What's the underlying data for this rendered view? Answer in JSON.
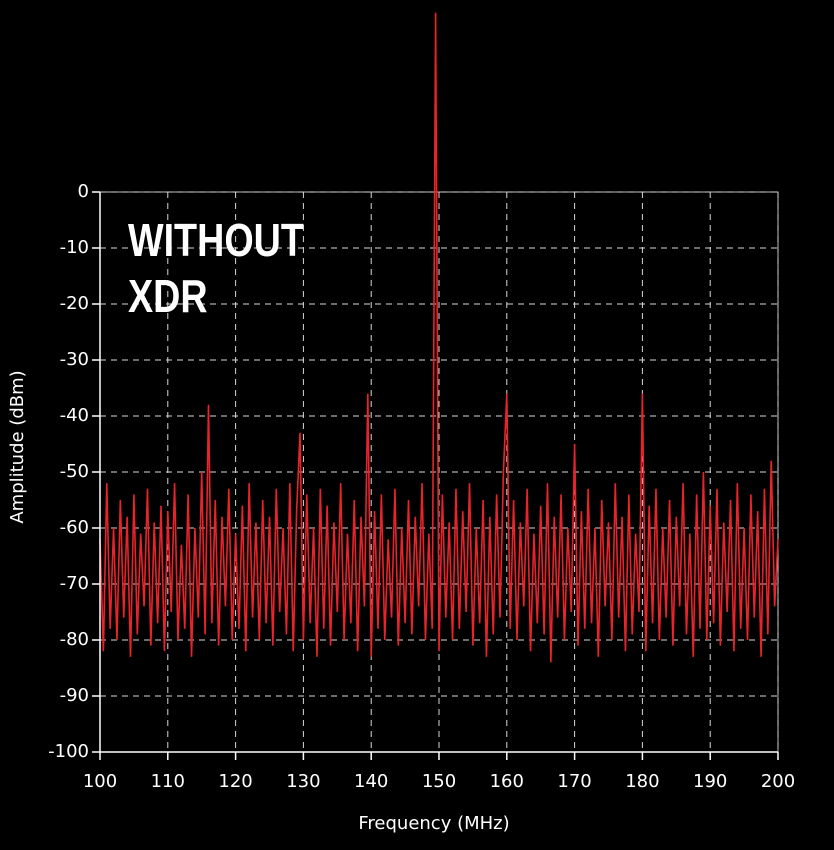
{
  "chart_data": {
    "type": "line",
    "xlabel": "Frequency (MHz)",
    "ylabel": "Amplitude (dBm)",
    "annotations": [
      "WITHOUT",
      "XDR"
    ],
    "color": "#e8232b",
    "grid": true,
    "xlim": [
      100,
      200
    ],
    "xticks": [
      100,
      110,
      120,
      130,
      140,
      150,
      160,
      170,
      180,
      190,
      200
    ],
    "ylim": [
      -100,
      0
    ],
    "yticks": [
      0,
      -10,
      -20,
      -30,
      -40,
      -50,
      -60,
      -70,
      -80,
      -90,
      -100
    ],
    "x": [
      100,
      100.5,
      101,
      101.5,
      102,
      102.5,
      103,
      103.5,
      104,
      104.5,
      105,
      105.5,
      106,
      106.5,
      107,
      107.5,
      108,
      108.5,
      109,
      109.5,
      110,
      110.5,
      111,
      111.5,
      112,
      112.5,
      113,
      113.5,
      114,
      114.5,
      115,
      115.5,
      116,
      116.5,
      117,
      117.5,
      118,
      118.5,
      119,
      119.5,
      120,
      120.5,
      121,
      121.5,
      122,
      122.5,
      123,
      123.5,
      124,
      124.5,
      125,
      125.5,
      126,
      126.5,
      127,
      127.5,
      128,
      128.5,
      129,
      129.5,
      130,
      130.5,
      131,
      131.5,
      132,
      132.5,
      133,
      133.5,
      134,
      134.5,
      135,
      135.5,
      136,
      136.5,
      137,
      137.5,
      138,
      138.5,
      139,
      139.5,
      140,
      140.5,
      141,
      141.5,
      142,
      142.5,
      143,
      143.5,
      144,
      144.5,
      145,
      145.5,
      146,
      146.5,
      147,
      147.5,
      148,
      148.5,
      149,
      149.5,
      150,
      150.5,
      151,
      151.5,
      152,
      152.5,
      153,
      153.5,
      154,
      154.5,
      155,
      155.5,
      156,
      156.5,
      157,
      157.5,
      158,
      158.5,
      159,
      159.5,
      160,
      160.5,
      161,
      161.5,
      162,
      162.5,
      163,
      163.5,
      164,
      164.5,
      165,
      165.5,
      166,
      166.5,
      167,
      167.5,
      168,
      168.5,
      169,
      169.5,
      170,
      170.5,
      171,
      171.5,
      172,
      172.5,
      173,
      173.5,
      174,
      174.5,
      175,
      175.5,
      176,
      176.5,
      177,
      177.5,
      178,
      178.5,
      179,
      179.5,
      180,
      180.5,
      181,
      181.5,
      182,
      182.5,
      183,
      183.5,
      184,
      184.5,
      185,
      185.5,
      186,
      186.5,
      187,
      187.5,
      188,
      188.5,
      189,
      189.5,
      190,
      190.5,
      191,
      191.5,
      192,
      192.5,
      193,
      193.5,
      194,
      194.5,
      195,
      195.5,
      196,
      196.5,
      197,
      197.5,
      198,
      198.5,
      199,
      199.5,
      200
    ],
    "values": [
      -62,
      -82,
      -52,
      -78,
      -60,
      -80,
      -55,
      -76,
      -58,
      -83,
      -54,
      -79,
      -61,
      -74,
      -53,
      -81,
      -59,
      -77,
      -56,
      -82,
      -57,
      -75,
      -52,
      -80,
      -63,
      -78,
      -54,
      -83,
      -60,
      -76,
      -50,
      -79,
      -38,
      -77,
      -55,
      -81,
      -58,
      -74,
      -53,
      -80,
      -61,
      -78,
      -56,
      -82,
      -52,
      -76,
      -59,
      -80,
      -55,
      -77,
      -58,
      -81,
      -53,
      -75,
      -60,
      -79,
      -52,
      -82,
      -57,
      -43,
      -80,
      -54,
      -77,
      -60,
      -83,
      -53,
      -78,
      -56,
      -81,
      -59,
      -75,
      -52,
      -80,
      -61,
      -77,
      -55,
      -82,
      -58,
      -74,
      -36,
      -83,
      -57,
      -78,
      -54,
      -80,
      -62,
      -76,
      -53,
      -81,
      -60,
      -77,
      -55,
      -79,
      -58,
      -74,
      -52,
      -80,
      -61,
      -78,
      32,
      -82,
      -54,
      -76,
      -59,
      -80,
      -53,
      -78,
      -57,
      -75,
      -52,
      -81,
      -60,
      -77,
      -55,
      -83,
      -58,
      -79,
      -54,
      -76,
      -50,
      -36,
      -78,
      -55,
      -80,
      -59,
      -74,
      -53,
      -82,
      -61,
      -77,
      -56,
      -79,
      -52,
      -84,
      -58,
      -76,
      -54,
      -80,
      -60,
      -75,
      -45,
      -81,
      -57,
      -78,
      -53,
      -77,
      -60,
      -83,
      -55,
      -74,
      -59,
      -80,
      -52,
      -76,
      -58,
      -82,
      -54,
      -79,
      -61,
      -75,
      -36,
      -82,
      -56,
      -77,
      -53,
      -80,
      -60,
      -76,
      -55,
      -81,
      -58,
      -74,
      -52,
      -79,
      -61,
      -83,
      -54,
      -78,
      -50,
      -80,
      -56,
      -77,
      -53,
      -81,
      -59,
      -75,
      -55,
      -82,
      -52,
      -78,
      -60,
      -80,
      -54,
      -76,
      -57,
      -83,
      -53,
      -79,
      -48,
      -74,
      -62
    ]
  }
}
